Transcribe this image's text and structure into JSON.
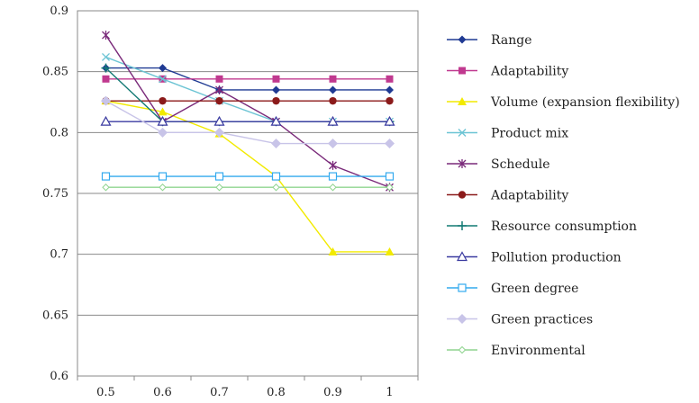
{
  "chart_data": {
    "type": "line",
    "x": [
      0.5,
      0.6,
      0.7,
      0.8,
      0.9,
      1
    ],
    "x_tick_labels": [
      "0.5",
      "0.6",
      "0.7",
      "0.8",
      "0.9",
      "1"
    ],
    "ylim": [
      0.6,
      0.9
    ],
    "y_ticks": [
      0.6,
      0.65,
      0.7,
      0.75,
      0.8,
      0.85,
      0.9
    ],
    "y_tick_labels": [
      "0.6",
      "0.65",
      "0.7",
      "0.75",
      "0.8",
      "0.85",
      "0.9"
    ],
    "grid": "horizontal",
    "legend_position": "right",
    "title": "",
    "xlabel": "",
    "ylabel": "",
    "series": [
      {
        "name": "Range",
        "color": "#1f3a93",
        "marker": "diamond",
        "values": [
          0.853,
          0.853,
          0.835,
          0.835,
          0.835,
          0.835
        ]
      },
      {
        "name": "Adaptability",
        "color": "#c0398f",
        "marker": "square",
        "values": [
          0.844,
          0.844,
          0.844,
          0.844,
          0.844,
          0.844
        ]
      },
      {
        "name": "Volume (expansion flexibility)",
        "color": "#f2ea00",
        "marker": "triangle",
        "values": [
          0.826,
          0.817,
          0.799,
          0.764,
          0.702,
          0.702
        ]
      },
      {
        "name": "Product mix",
        "color": "#6cc4d4",
        "marker": "x",
        "values": [
          0.862,
          0.844,
          0.826,
          0.809,
          0.809,
          0.809
        ]
      },
      {
        "name": "Schedule",
        "color": "#7a2a7a",
        "marker": "star",
        "values": [
          0.88,
          0.809,
          0.835,
          0.809,
          0.773,
          0.755
        ]
      },
      {
        "name": "Adaptability",
        "color": "#8b1a1a",
        "marker": "circle",
        "values": [
          0.826,
          0.826,
          0.826,
          0.826,
          0.826,
          0.826
        ]
      },
      {
        "name": "Resource consumption",
        "color": "#127a74",
        "marker": "plus",
        "values": [
          0.853,
          0.809,
          0.809,
          0.809,
          0.809,
          0.809
        ]
      },
      {
        "name": "Pollution production",
        "color": "#3a3aa0",
        "marker": "triangle-open",
        "values": [
          0.809,
          0.809,
          0.809,
          0.809,
          0.809,
          0.809
        ]
      },
      {
        "name": "Green degree",
        "color": "#33aaee",
        "marker": "square-open",
        "values": [
          0.764,
          0.764,
          0.764,
          0.764,
          0.764,
          0.764
        ]
      },
      {
        "name": "Green practices",
        "color": "#c8c4e8",
        "marker": "diamond-filled-light",
        "values": [
          0.826,
          0.8,
          0.8,
          0.791,
          0.791,
          0.791
        ]
      },
      {
        "name": "Environmental",
        "color": "#8fd48f",
        "marker": "diamond-open",
        "values": [
          0.755,
          0.755,
          0.755,
          0.755,
          0.755,
          0.755
        ]
      }
    ]
  }
}
